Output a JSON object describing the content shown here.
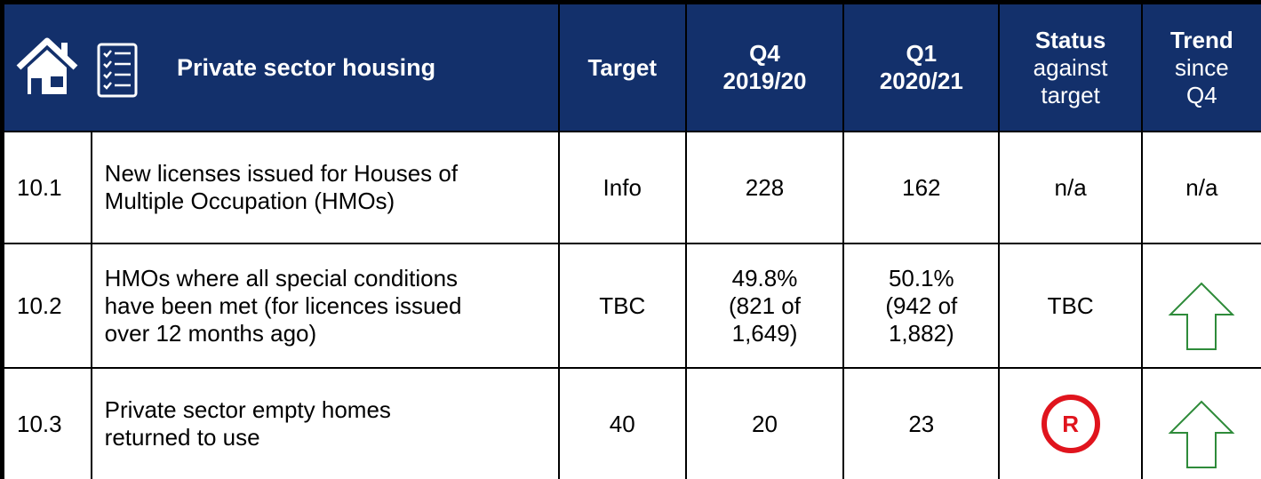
{
  "header": {
    "title": "Private sector housing",
    "columns": [
      {
        "bold": "Target"
      },
      {
        "bold": "Q4\n2019/20"
      },
      {
        "bold": "Q1\n2020/21"
      },
      {
        "bold": "Status",
        "rest": "against\ntarget"
      },
      {
        "bold": "Trend",
        "rest": "since\nQ4"
      }
    ]
  },
  "table": {
    "rows": [
      {
        "id": "10.1",
        "description": "New licenses issued for Houses of\nMultiple Occupation (HMOs)",
        "target": "Info",
        "q4": "228",
        "q1": "162",
        "status": "n/a",
        "trend": "n/a"
      },
      {
        "id": "10.2",
        "description": "HMOs where all special conditions\nhave been met (for licences issued\nover 12 months ago)",
        "target": "TBC",
        "q4": "49.8%\n(821 of\n1,649)",
        "q1": "50.1%\n(942 of\n1,882)",
        "status": "TBC"
      },
      {
        "id": "10.3",
        "description": "Private sector empty homes\nreturned to use",
        "target": "40",
        "q4": "20",
        "q1": "23",
        "status": "R"
      }
    ]
  }
}
